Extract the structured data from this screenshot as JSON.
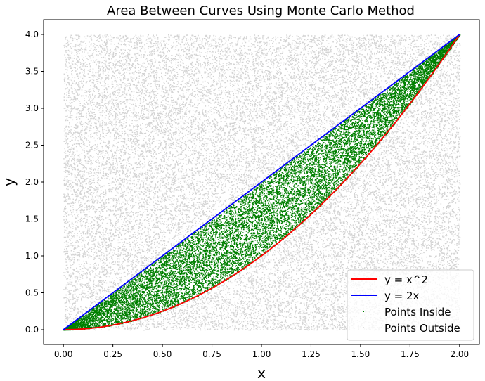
{
  "chart_data": {
    "type": "scatter",
    "title": "Area Between Curves Using Monte Carlo Method",
    "xlabel": "x",
    "ylabel": "y",
    "xlim": [
      -0.1,
      2.1
    ],
    "ylim": [
      -0.2,
      4.2
    ],
    "xticks": [
      0.0,
      0.25,
      0.5,
      0.75,
      1.0,
      1.25,
      1.5,
      1.75,
      2.0
    ],
    "xtick_labels": [
      "0.00",
      "0.25",
      "0.50",
      "0.75",
      "1.00",
      "1.25",
      "1.50",
      "1.75",
      "2.00"
    ],
    "yticks": [
      0.0,
      0.5,
      1.0,
      1.5,
      2.0,
      2.5,
      3.0,
      3.5,
      4.0
    ],
    "ytick_labels": [
      "0.0",
      "0.5",
      "1.0",
      "1.5",
      "2.0",
      "2.5",
      "3.0",
      "3.5",
      "4.0"
    ],
    "sample_region": {
      "x": [
        0,
        2
      ],
      "y": [
        0,
        4
      ]
    },
    "grid": false,
    "legend_position": "lower-right",
    "series": [
      {
        "name": "y = x^2",
        "kind": "line",
        "color": "#ff0000",
        "x": [
          0,
          0.25,
          0.5,
          0.75,
          1.0,
          1.25,
          1.5,
          1.75,
          2.0
        ],
        "y": [
          0,
          0.0625,
          0.25,
          0.5625,
          1.0,
          1.5625,
          2.25,
          3.0625,
          4.0
        ]
      },
      {
        "name": "y = 2x",
        "kind": "line",
        "color": "#0000ff",
        "x": [
          0,
          2
        ],
        "y": [
          0,
          4
        ]
      },
      {
        "name": "Points Inside",
        "kind": "scatter",
        "color": "#008000",
        "region": "x^2 <= y <= 2x"
      },
      {
        "name": "Points Outside",
        "kind": "scatter",
        "color": "#808080",
        "region": "outside"
      }
    ]
  }
}
